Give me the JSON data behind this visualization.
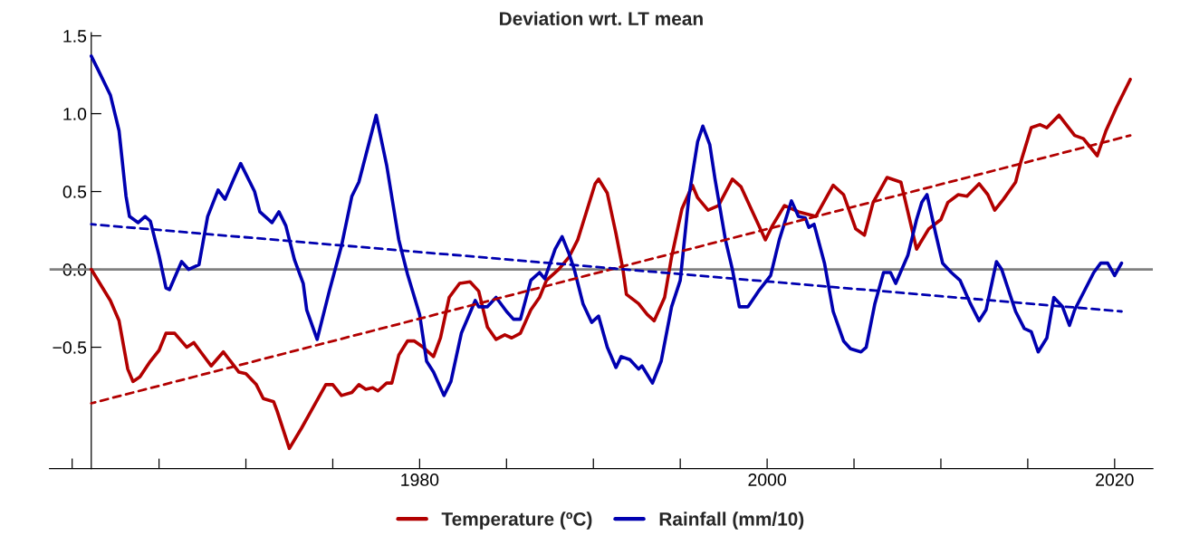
{
  "chart_data": {
    "type": "line",
    "title": "Deviation wrt. LT mean",
    "xlim": [
      1958.7,
      2022.2
    ],
    "xticks": [
      {
        "value": 1960,
        "label": null
      },
      {
        "value": 1965,
        "label": null
      },
      {
        "value": 1970,
        "label": null
      },
      {
        "value": 1975,
        "label": null
      },
      1980,
      {
        "value": 1985,
        "label": null
      },
      {
        "value": 1990,
        "label": null
      },
      {
        "value": 1995,
        "label": null
      },
      2000,
      {
        "value": 2005,
        "label": null
      },
      {
        "value": 2010,
        "label": null
      },
      {
        "value": 2015,
        "label": null
      },
      2020
    ],
    "ylim": [
      -1.28,
      1.52
    ],
    "yticks": [
      {
        "value": -0.5,
        "label": "−0.5"
      },
      {
        "value": 0.0,
        "label": "0.0"
      },
      {
        "value": 0.5,
        "label": "0.5"
      },
      {
        "value": 1.0,
        "label": "1.0"
      },
      {
        "value": 1.5,
        "label": "1.5"
      }
    ],
    "grid": false,
    "legend": "bottom",
    "marker": "none",
    "ref_lines": [
      {
        "axis": "y",
        "value": 0,
        "color": "#808080",
        "line_style": "solid"
      }
    ],
    "series": [
      {
        "name": "Temperature (ºC)",
        "color": "#b20000",
        "line_style": "solid",
        "x": [
          1961.1,
          1962.2,
          1962.7,
          1963.2,
          1963.5,
          1963.9,
          1964.5,
          1965.0,
          1965.4,
          1965.9,
          1966.6,
          1967.0,
          1967.4,
          1968.0,
          1968.7,
          1969.6,
          1970.0,
          1970.6,
          1971.0,
          1971.6,
          1971.8,
          1972.5,
          1973.2,
          1973.8,
          1974.6,
          1975.0,
          1975.5,
          1976.1,
          1976.5,
          1976.9,
          1977.3,
          1977.6,
          1978.1,
          1978.4,
          1978.8,
          1979.3,
          1979.7,
          1980.2,
          1980.8,
          1981.2,
          1981.7,
          1982.3,
          1982.9,
          1983.4,
          1983.9,
          1984.4,
          1984.9,
          1985.3,
          1985.8,
          1986.4,
          1986.9,
          1987.3,
          1988.0,
          1988.6,
          1989.1,
          1989.6,
          1990.1,
          1990.3,
          1990.8,
          1991.3,
          1991.7,
          1991.9,
          1992.6,
          1993.1,
          1993.5,
          1994.1,
          1994.5,
          1995.1,
          1995.7,
          1996.0,
          1996.6,
          1997.2,
          1998.0,
          1998.5,
          1999.2,
          1999.9,
          2000.3,
          2001.0,
          2001.8,
          2002.8,
          2003.8,
          2004.4,
          2005.1,
          2005.6,
          2006.1,
          2006.9,
          2007.7,
          2008.1,
          2008.6,
          2009.3,
          2010.0,
          2010.4,
          2011.0,
          2011.5,
          2012.2,
          2012.7,
          2013.1,
          2013.6,
          2014.3,
          2014.6,
          2015.2,
          2015.7,
          2016.1,
          2016.8,
          2017.7,
          2018.2,
          2019.0,
          2019.5,
          2020.1,
          2020.9
        ],
        "values": [
          0.0,
          -0.2,
          -0.33,
          -0.64,
          -0.72,
          -0.69,
          -0.59,
          -0.52,
          -0.41,
          -0.41,
          -0.5,
          -0.47,
          -0.53,
          -0.62,
          -0.53,
          -0.66,
          -0.67,
          -0.74,
          -0.83,
          -0.85,
          -0.91,
          -1.15,
          -1.02,
          -0.9,
          -0.74,
          -0.74,
          -0.81,
          -0.79,
          -0.74,
          -0.77,
          -0.76,
          -0.78,
          -0.73,
          -0.73,
          -0.55,
          -0.46,
          -0.46,
          -0.5,
          -0.56,
          -0.44,
          -0.18,
          -0.09,
          -0.08,
          -0.14,
          -0.37,
          -0.45,
          -0.42,
          -0.44,
          -0.41,
          -0.26,
          -0.18,
          -0.07,
          0.0,
          0.08,
          0.19,
          0.37,
          0.55,
          0.58,
          0.49,
          0.23,
          0.0,
          -0.16,
          -0.22,
          -0.29,
          -0.33,
          -0.18,
          0.08,
          0.39,
          0.54,
          0.46,
          0.38,
          0.41,
          0.58,
          0.53,
          0.36,
          0.19,
          0.28,
          0.41,
          0.37,
          0.34,
          0.54,
          0.48,
          0.26,
          0.22,
          0.43,
          0.59,
          0.56,
          0.37,
          0.13,
          0.26,
          0.32,
          0.43,
          0.48,
          0.47,
          0.55,
          0.48,
          0.38,
          0.45,
          0.56,
          0.69,
          0.91,
          0.93,
          0.91,
          0.99,
          0.86,
          0.84,
          0.73,
          0.89,
          1.04,
          1.22
        ]
      },
      {
        "name": "Rainfall (mm/10)",
        "color": "#0000b0",
        "line_style": "solid",
        "x": [
          1961.1,
          1961.5,
          1962.2,
          1962.7,
          1963.1,
          1963.3,
          1963.8,
          1964.2,
          1964.5,
          1965.0,
          1965.4,
          1965.6,
          1966.3,
          1966.7,
          1967.3,
          1967.8,
          1968.4,
          1968.8,
          1969.3,
          1969.7,
          1970.5,
          1970.8,
          1971.5,
          1971.9,
          1972.3,
          1972.8,
          1973.3,
          1973.5,
          1974.1,
          1974.8,
          1975.5,
          1976.1,
          1976.5,
          1977.5,
          1978.1,
          1978.8,
          1979.3,
          1980.0,
          1980.4,
          1980.8,
          1981.4,
          1981.8,
          1982.4,
          1983.2,
          1983.4,
          1983.9,
          1984.4,
          1985.0,
          1985.4,
          1985.8,
          1986.4,
          1986.9,
          1987.2,
          1987.8,
          1988.2,
          1988.6,
          1988.9,
          1989.4,
          1989.9,
          1990.3,
          1990.8,
          1991.3,
          1991.6,
          1992.1,
          1992.6,
          1992.8,
          1993.4,
          1993.9,
          1994.5,
          1995.0,
          1995.5,
          1996.0,
          1996.3,
          1996.7,
          1997.0,
          1997.6,
          1998.0,
          1998.4,
          1998.9,
          1999.5,
          2000.2,
          2000.7,
          2001.4,
          2001.8,
          2002.2,
          2002.4,
          2002.7,
          2003.3,
          2003.8,
          2004.4,
          2004.8,
          2005.4,
          2005.7,
          2006.2,
          2006.7,
          2007.1,
          2007.4,
          2008.1,
          2008.6,
          2008.9,
          2009.2,
          2009.7,
          2010.1,
          2010.6,
          2011.1,
          2011.7,
          2012.2,
          2012.6,
          2013.2,
          2013.5,
          2014.3,
          2014.8,
          2015.2,
          2015.6,
          2016.1,
          2016.5,
          2017.0,
          2017.4,
          2017.7,
          2018.8,
          2019.2,
          2019.6,
          2020.0,
          2020.4
        ],
        "values": [
          1.37,
          1.28,
          1.12,
          0.89,
          0.47,
          0.34,
          0.3,
          0.34,
          0.31,
          0.09,
          -0.12,
          -0.13,
          0.05,
          0.0,
          0.03,
          0.34,
          0.51,
          0.45,
          0.58,
          0.68,
          0.5,
          0.37,
          0.3,
          0.37,
          0.28,
          0.06,
          -0.09,
          -0.26,
          -0.45,
          -0.14,
          0.15,
          0.47,
          0.56,
          0.99,
          0.67,
          0.19,
          -0.03,
          -0.29,
          -0.59,
          -0.66,
          -0.81,
          -0.72,
          -0.41,
          -0.2,
          -0.24,
          -0.24,
          -0.18,
          -0.27,
          -0.32,
          -0.32,
          -0.07,
          -0.02,
          -0.06,
          0.13,
          0.21,
          0.1,
          0.0,
          -0.22,
          -0.34,
          -0.3,
          -0.5,
          -0.63,
          -0.56,
          -0.58,
          -0.64,
          -0.62,
          -0.73,
          -0.59,
          -0.24,
          -0.07,
          0.47,
          0.82,
          0.92,
          0.8,
          0.58,
          0.19,
          0.0,
          -0.24,
          -0.24,
          -0.14,
          -0.04,
          0.19,
          0.44,
          0.34,
          0.33,
          0.27,
          0.29,
          0.04,
          -0.27,
          -0.46,
          -0.51,
          -0.53,
          -0.5,
          -0.22,
          -0.02,
          -0.02,
          -0.09,
          0.09,
          0.32,
          0.43,
          0.48,
          0.23,
          0.04,
          -0.02,
          -0.07,
          -0.22,
          -0.33,
          -0.26,
          0.05,
          0.0,
          -0.27,
          -0.38,
          -0.4,
          -0.53,
          -0.44,
          -0.18,
          -0.24,
          -0.36,
          -0.26,
          -0.02,
          0.04,
          0.04,
          -0.04,
          0.04
        ]
      },
      {
        "color": "#b20000",
        "line_style": "dashed",
        "x": [
          1961.1,
          2020.9
        ],
        "values": [
          -0.86,
          0.86
        ]
      },
      {
        "color": "#0000b0",
        "line_style": "dashed",
        "x": [
          1961.1,
          2020.4
        ],
        "values": [
          0.29,
          -0.27
        ]
      }
    ]
  }
}
